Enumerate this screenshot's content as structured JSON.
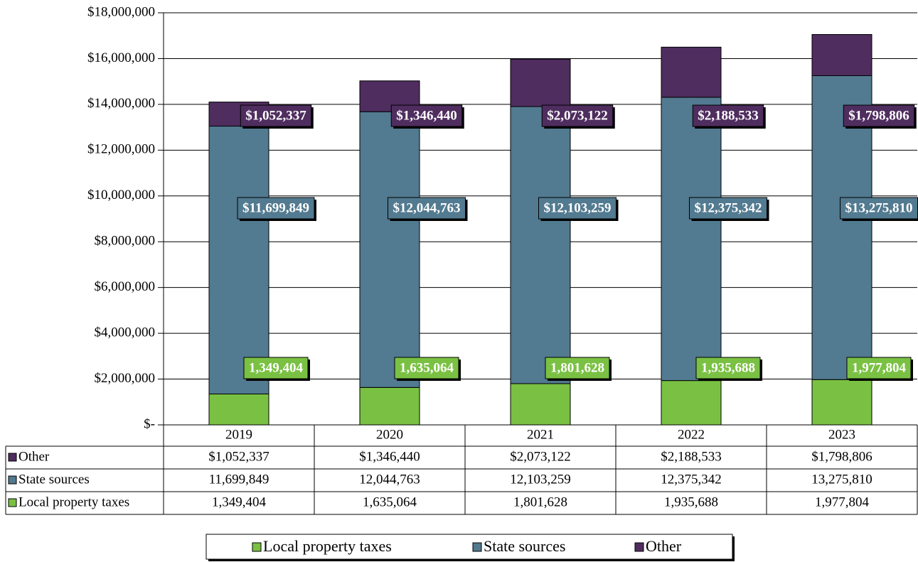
{
  "chart_data": {
    "type": "stacked_bar",
    "categories": [
      "2019",
      "2020",
      "2021",
      "2022",
      "2023"
    ],
    "series": [
      {
        "name": "Local property taxes",
        "color": "#7ac143",
        "values": [
          1349404,
          1635064,
          1801628,
          1935688,
          1977804
        ],
        "value_labels": [
          "1,349,404",
          "1,635,064",
          "1,801,628",
          "1,935,688",
          "1,977,804"
        ],
        "table_labels": [
          "1,349,404",
          "1,635,064",
          "1,801,628",
          "1,935,688",
          "1,977,804"
        ]
      },
      {
        "name": "State sources",
        "color": "#527a90",
        "values": [
          11699849,
          12044763,
          12103259,
          12375342,
          13275810
        ],
        "value_labels": [
          "$11,699,849",
          "$12,044,763",
          "$12,103,259",
          "$12,375,342",
          "$13,275,810"
        ],
        "table_labels": [
          "11,699,849",
          "12,044,763",
          "12,103,259",
          "12,375,342",
          "13,275,810"
        ]
      },
      {
        "name": "Other",
        "color": "#4f2d5f",
        "values": [
          1052337,
          1346440,
          2073122,
          2188533,
          1798806
        ],
        "value_labels": [
          "$1,052,337",
          "$1,346,440",
          "$2,073,122",
          "$2,188,533",
          "$1,798,806"
        ],
        "table_labels": [
          "$1,052,337",
          "$1,346,440",
          "$2,073,122",
          "$2,188,533",
          "$1,798,806"
        ]
      }
    ],
    "ylim": [
      0,
      18000000
    ],
    "yticks": [
      {
        "value": 0,
        "label": "$-"
      },
      {
        "value": 2000000,
        "label": "$2,000,000"
      },
      {
        "value": 4000000,
        "label": "$4,000,000"
      },
      {
        "value": 6000000,
        "label": "$6,000,000"
      },
      {
        "value": 8000000,
        "label": "$8,000,000"
      },
      {
        "value": 10000000,
        "label": "$10,000,000"
      },
      {
        "value": 12000000,
        "label": "$12,000,000"
      },
      {
        "value": 14000000,
        "label": "$14,000,000"
      },
      {
        "value": 16000000,
        "label": "$16,000,000"
      },
      {
        "value": 18000000,
        "label": "$18,000,000"
      }
    ],
    "grid": true,
    "legend": "bottom"
  }
}
